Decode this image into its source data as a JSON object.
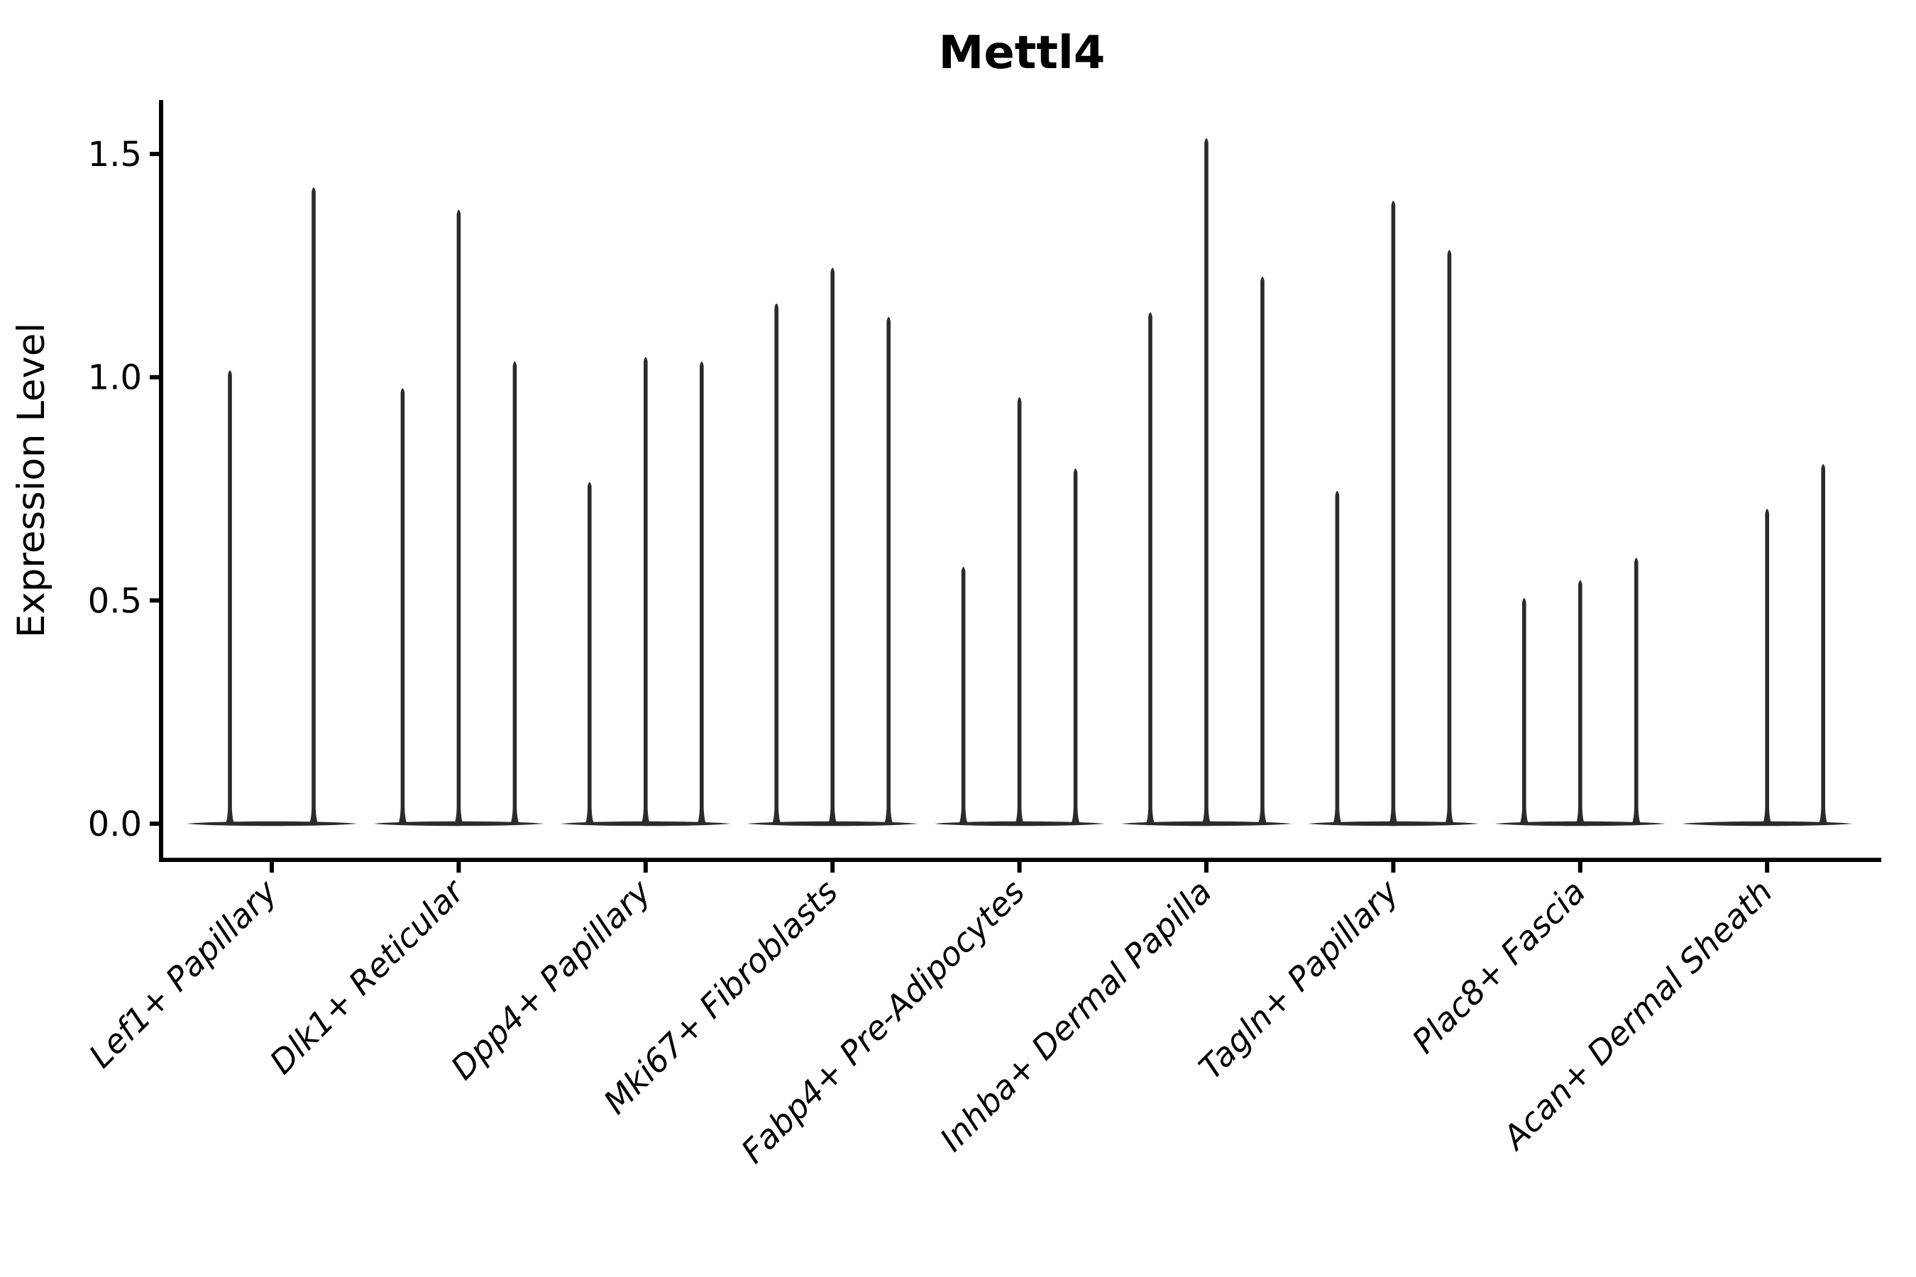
{
  "chart_data": {
    "type": "violin",
    "title": "Mettl4",
    "ylabel": "Expression Level",
    "xlabel": "",
    "yticks": [
      0.0,
      0.5,
      1.0,
      1.5
    ],
    "ylim": [
      0.0,
      1.62
    ],
    "grid": false,
    "legend": "none",
    "description": "Split violin plot of Mettl4 expression; most cells are zero so each violin collapses to a flat base at 0 with a thin density spike rising to the maximum expression value.",
    "groups": [
      {
        "label": "Lef1+ Papillary",
        "violin_maxima": [
          1.02,
          1.43
        ]
      },
      {
        "label": "Dlk1+ Reticular",
        "violin_maxima": [
          0.98,
          1.38,
          1.04
        ]
      },
      {
        "label": "Dpp4+ Papillary",
        "violin_maxima": [
          0.77,
          1.05,
          1.04
        ]
      },
      {
        "label": "Mki67+ Fibroblasts",
        "violin_maxima": [
          1.17,
          1.25,
          1.14
        ]
      },
      {
        "label": "Fabp4+ Pre-Adipocytes",
        "violin_maxima": [
          0.58,
          0.96,
          0.8
        ]
      },
      {
        "label": "Inhba+ Dermal Papilla",
        "violin_maxima": [
          1.15,
          1.54,
          1.23
        ]
      },
      {
        "label": "Tagln+ Papillary",
        "violin_maxima": [
          0.75,
          1.4,
          1.29
        ]
      },
      {
        "label": "Plac8+ Fascia",
        "violin_maxima": [
          0.51,
          0.55,
          0.6
        ]
      },
      {
        "label": "Acan+ Dermal Sheath",
        "violin_maxima": [
          0.0,
          0.71,
          0.81
        ]
      }
    ],
    "colors": {
      "violin": "#2b2b2b",
      "axis": "#000000",
      "text": "#000000",
      "background": "#ffffff"
    }
  }
}
